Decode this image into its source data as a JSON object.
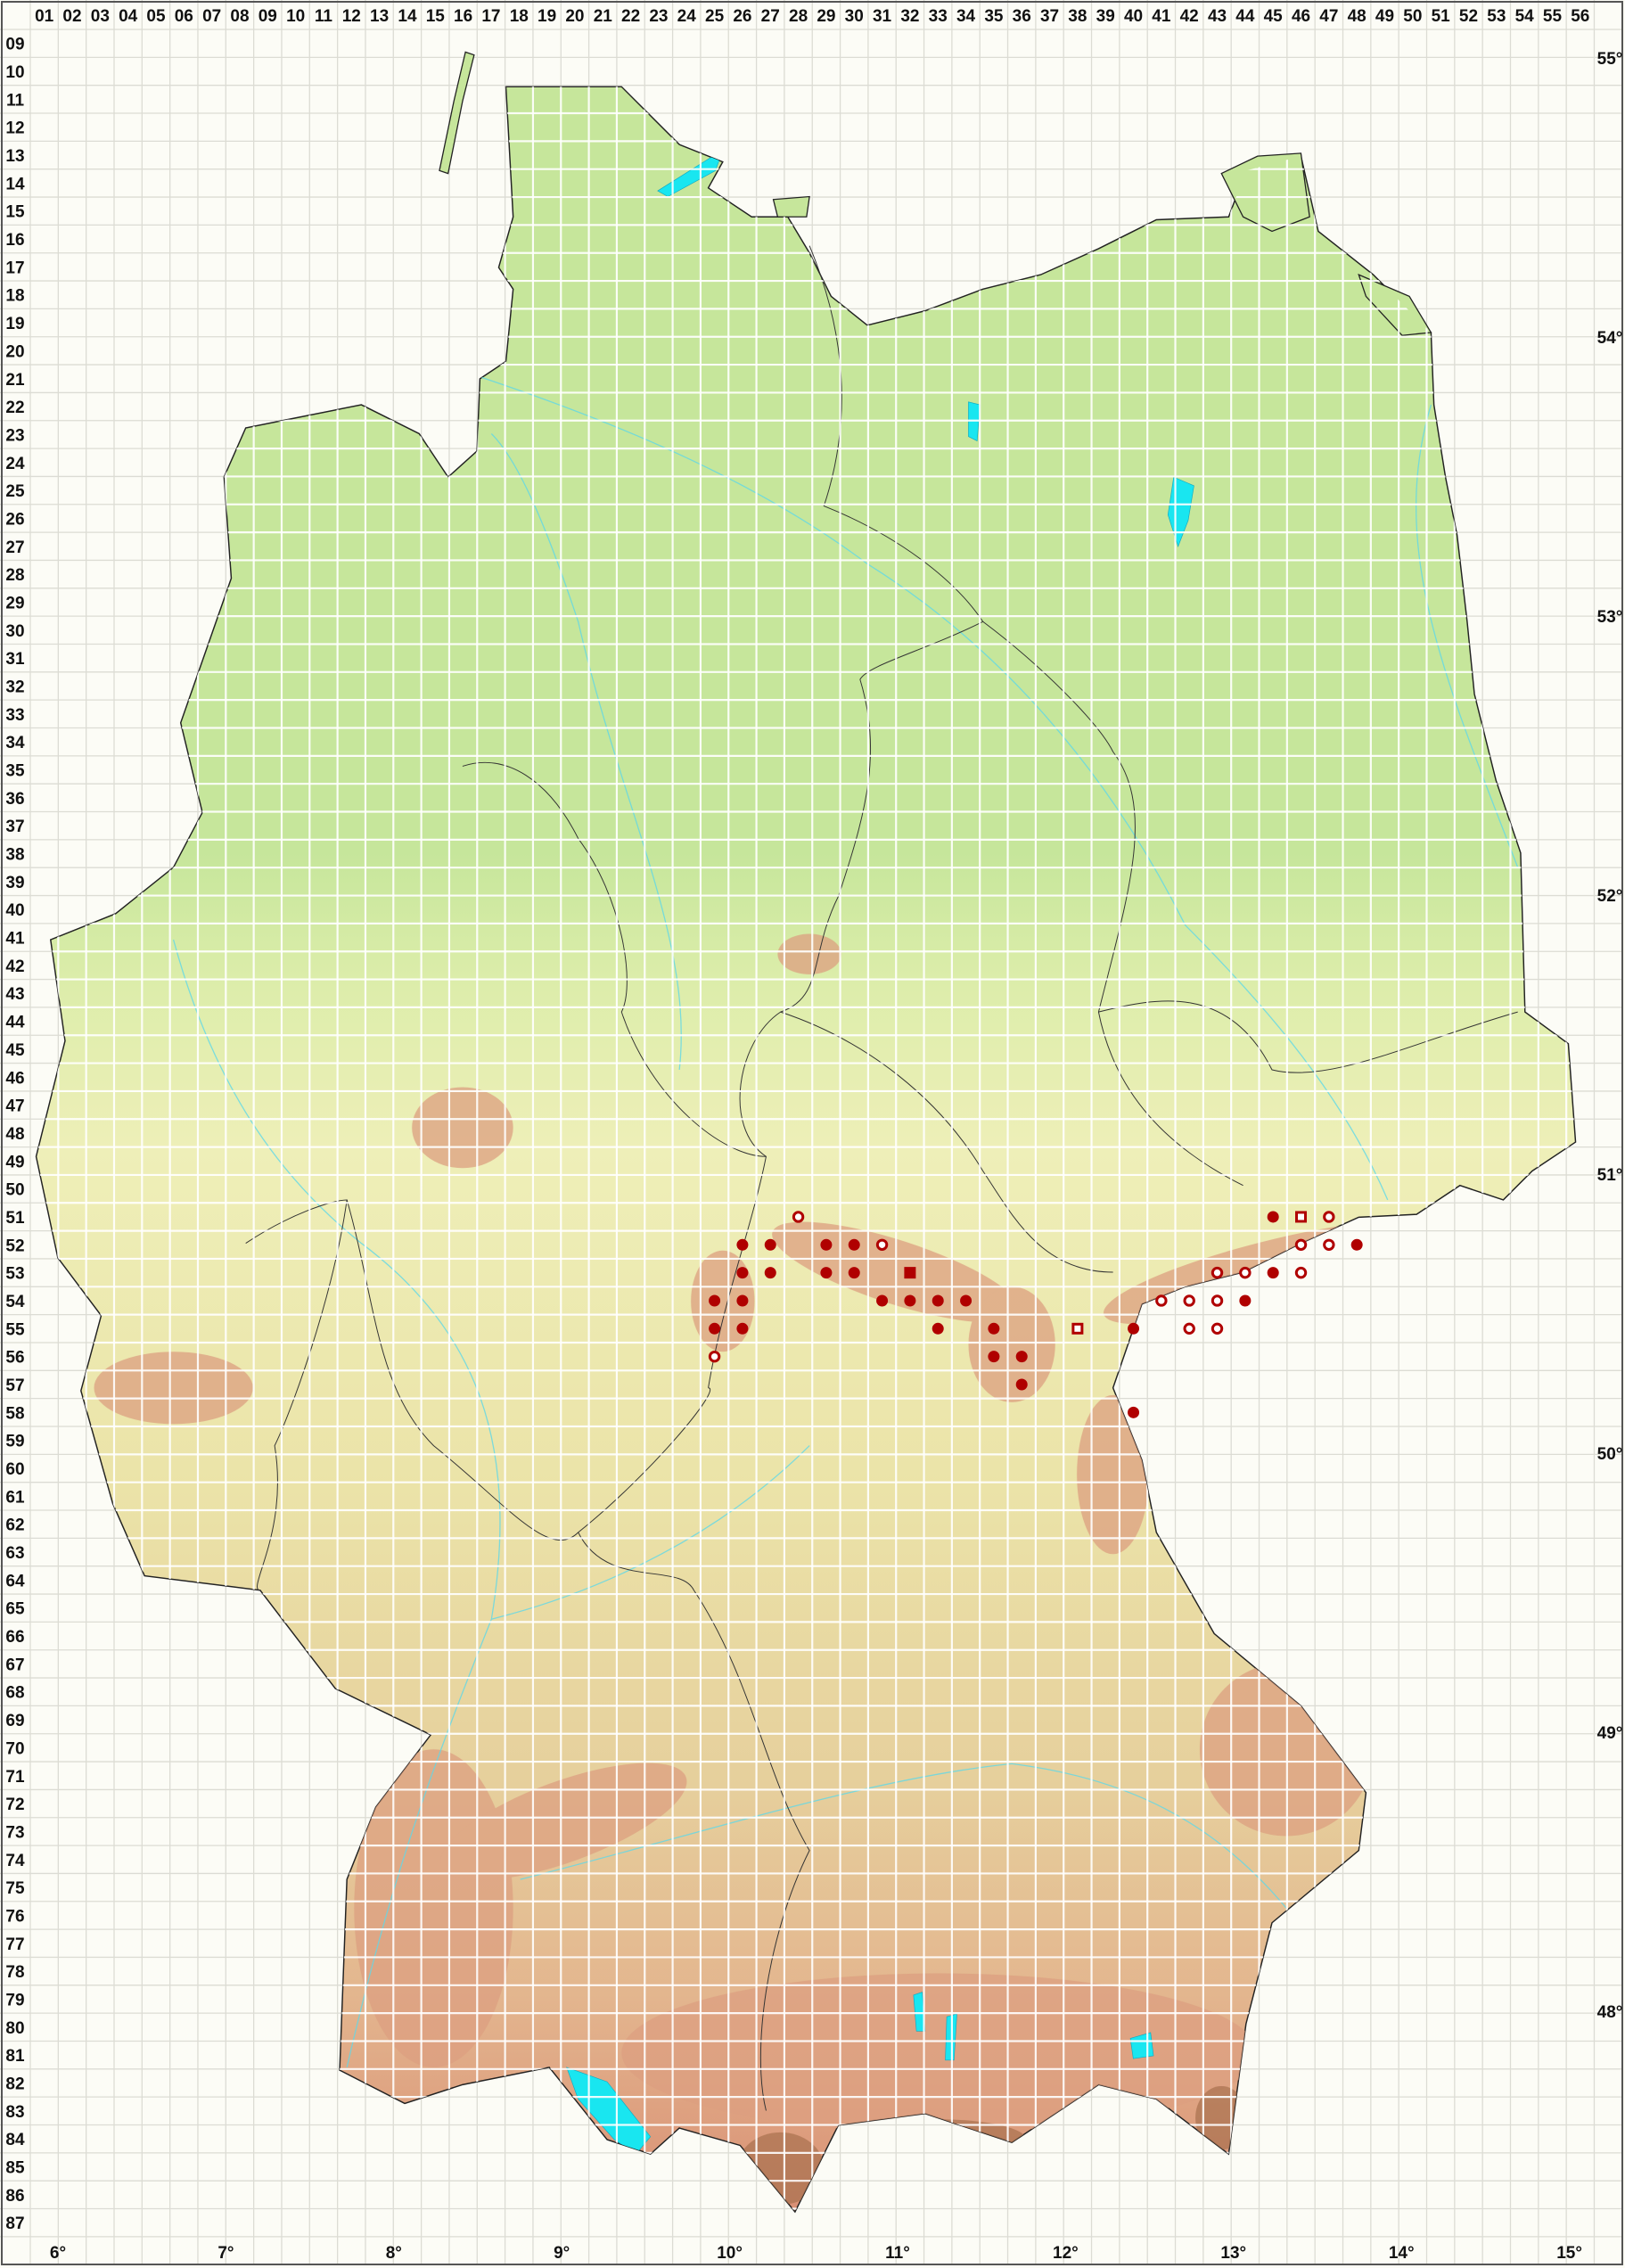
{
  "grid": {
    "columns": [
      "01",
      "02",
      "03",
      "04",
      "05",
      "06",
      "07",
      "08",
      "09",
      "10",
      "11",
      "12",
      "13",
      "14",
      "15",
      "16",
      "17",
      "18",
      "19",
      "20",
      "21",
      "22",
      "23",
      "24",
      "25",
      "26",
      "27",
      "28",
      "29",
      "30",
      "31",
      "32",
      "33",
      "34",
      "35",
      "36",
      "37",
      "38",
      "39",
      "40",
      "41",
      "42",
      "43",
      "44",
      "45",
      "46",
      "47",
      "48",
      "49",
      "50",
      "51",
      "52",
      "53",
      "54",
      "55",
      "56"
    ],
    "rows": [
      "09",
      "10",
      "11",
      "12",
      "13",
      "14",
      "15",
      "16",
      "17",
      "18",
      "19",
      "20",
      "21",
      "22",
      "23",
      "24",
      "25",
      "26",
      "27",
      "28",
      "29",
      "30",
      "31",
      "32",
      "33",
      "34",
      "35",
      "36",
      "37",
      "38",
      "39",
      "40",
      "41",
      "42",
      "43",
      "44",
      "45",
      "46",
      "47",
      "48",
      "49",
      "50",
      "51",
      "52",
      "53",
      "54",
      "55",
      "56",
      "57",
      "58",
      "59",
      "60",
      "61",
      "62",
      "63",
      "64",
      "65",
      "66",
      "67",
      "68",
      "69",
      "70",
      "71",
      "72",
      "73",
      "74",
      "75",
      "76",
      "77",
      "78",
      "79",
      "80",
      "81",
      "82",
      "83",
      "84",
      "85",
      "86",
      "87"
    ]
  },
  "longitude_labels": [
    {
      "deg": 6,
      "label": "6°"
    },
    {
      "deg": 7,
      "label": "7°"
    },
    {
      "deg": 8,
      "label": "8°"
    },
    {
      "deg": 9,
      "label": "9°"
    },
    {
      "deg": 10,
      "label": "10°"
    },
    {
      "deg": 11,
      "label": "11°"
    },
    {
      "deg": 12,
      "label": "12°"
    },
    {
      "deg": 13,
      "label": "13°"
    },
    {
      "deg": 14,
      "label": "14°"
    },
    {
      "deg": 15,
      "label": "15°"
    }
  ],
  "latitude_labels": [
    {
      "deg": 55,
      "label": "55°"
    },
    {
      "deg": 54,
      "label": "54°"
    },
    {
      "deg": 53,
      "label": "53°"
    },
    {
      "deg": 52,
      "label": "52°"
    },
    {
      "deg": 51,
      "label": "51°"
    },
    {
      "deg": 50,
      "label": "50°"
    },
    {
      "deg": 49,
      "label": "49°"
    },
    {
      "deg": 48,
      "label": "48°"
    }
  ],
  "colors": {
    "marker": "#b00000",
    "lowland": "#c6e69b",
    "upland": "#eeefb8",
    "highland": "#e3b58e",
    "mountain": "#d98f74",
    "water": "#19e6f0",
    "grid_on_land": "#ffffff",
    "grid_outside": "#dcdcd4"
  },
  "marker_types": [
    "filled-circle",
    "open-circle",
    "filled-square",
    "open-square"
  ],
  "markers": [
    {
      "col": "28",
      "row": "51",
      "type": "open-circle"
    },
    {
      "col": "45",
      "row": "51",
      "type": "filled-circle"
    },
    {
      "col": "46",
      "row": "51",
      "type": "open-square"
    },
    {
      "col": "47",
      "row": "51",
      "type": "open-circle"
    },
    {
      "col": "26",
      "row": "52",
      "type": "filled-circle"
    },
    {
      "col": "27",
      "row": "52",
      "type": "filled-circle"
    },
    {
      "col": "29",
      "row": "52",
      "type": "filled-circle"
    },
    {
      "col": "30",
      "row": "52",
      "type": "filled-circle"
    },
    {
      "col": "31",
      "row": "52",
      "type": "open-circle"
    },
    {
      "col": "46",
      "row": "52",
      "type": "open-circle"
    },
    {
      "col": "47",
      "row": "52",
      "type": "open-circle"
    },
    {
      "col": "48",
      "row": "52",
      "type": "filled-circle"
    },
    {
      "col": "26",
      "row": "53",
      "type": "filled-circle"
    },
    {
      "col": "27",
      "row": "53",
      "type": "filled-circle"
    },
    {
      "col": "29",
      "row": "53",
      "type": "filled-circle"
    },
    {
      "col": "30",
      "row": "53",
      "type": "filled-circle"
    },
    {
      "col": "32",
      "row": "53",
      "type": "filled-square"
    },
    {
      "col": "43",
      "row": "53",
      "type": "open-circle"
    },
    {
      "col": "44",
      "row": "53",
      "type": "open-circle"
    },
    {
      "col": "45",
      "row": "53",
      "type": "filled-circle"
    },
    {
      "col": "46",
      "row": "53",
      "type": "open-circle"
    },
    {
      "col": "25",
      "row": "54",
      "type": "filled-circle"
    },
    {
      "col": "26",
      "row": "54",
      "type": "filled-circle"
    },
    {
      "col": "31",
      "row": "54",
      "type": "filled-circle"
    },
    {
      "col": "32",
      "row": "54",
      "type": "filled-circle"
    },
    {
      "col": "33",
      "row": "54",
      "type": "filled-circle"
    },
    {
      "col": "34",
      "row": "54",
      "type": "filled-circle"
    },
    {
      "col": "41",
      "row": "54",
      "type": "open-circle"
    },
    {
      "col": "42",
      "row": "54",
      "type": "open-circle"
    },
    {
      "col": "43",
      "row": "54",
      "type": "open-circle"
    },
    {
      "col": "44",
      "row": "54",
      "type": "filled-circle"
    },
    {
      "col": "25",
      "row": "55",
      "type": "filled-circle"
    },
    {
      "col": "26",
      "row": "55",
      "type": "filled-circle"
    },
    {
      "col": "33",
      "row": "55",
      "type": "filled-circle"
    },
    {
      "col": "35",
      "row": "55",
      "type": "filled-circle"
    },
    {
      "col": "38",
      "row": "55",
      "type": "open-square"
    },
    {
      "col": "40",
      "row": "55",
      "type": "filled-circle"
    },
    {
      "col": "42",
      "row": "55",
      "type": "open-circle"
    },
    {
      "col": "43",
      "row": "55",
      "type": "open-circle"
    },
    {
      "col": "25",
      "row": "56",
      "type": "open-circle"
    },
    {
      "col": "35",
      "row": "56",
      "type": "filled-circle"
    },
    {
      "col": "36",
      "row": "56",
      "type": "filled-circle"
    },
    {
      "col": "36",
      "row": "57",
      "type": "filled-circle"
    },
    {
      "col": "40",
      "row": "58",
      "type": "filled-circle"
    }
  ]
}
